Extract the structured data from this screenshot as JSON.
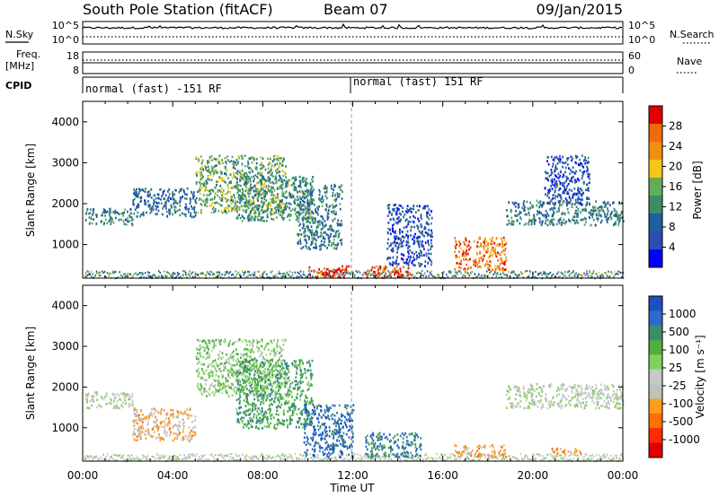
{
  "header": {
    "station": "South Pole Station (fitACF)",
    "beam": "Beam 07",
    "date": "09/Jan/2015"
  },
  "top_panels": {
    "nsky_label": "N.Sky",
    "nsearch_label": "N.Search",
    "noise_ticks_left": [
      "10^5",
      "10^0"
    ],
    "noise_ticks_right": [
      "10^5",
      "10^0"
    ],
    "freq_label_1": "Freq.",
    "freq_label_2": "[MHz]",
    "freq_ticks": [
      "18",
      "8"
    ],
    "nave_label": "Nave",
    "nave_ticks": [
      "60",
      "0"
    ],
    "cpid_label": "CPID",
    "cpid_segments": [
      "normal (fast) -151 RF",
      "normal (fast) 151 RF"
    ]
  },
  "time_axis": {
    "ticks": [
      "00:00",
      "04:00",
      "08:00",
      "12:00",
      "16:00",
      "20:00",
      "00:00"
    ],
    "label": "Time UT"
  },
  "colors": {
    "power_scale": [
      "#0000ff",
      "#2a4eaf",
      "#1f5f9a",
      "#3a8c6a",
      "#64ad57",
      "#f5c518",
      "#f08f12",
      "#ef6a0a",
      "#e00000"
    ],
    "velocity_scale": [
      "#1d4fbf",
      "#2a6cc7",
      "#3a8f6a",
      "#4faf45",
      "#7fd35a",
      "#c8c8c8",
      "#c0c0c0",
      "#ff9d1e",
      "#ff6e00",
      "#ff2a00",
      "#e00000"
    ]
  },
  "chart_data": [
    {
      "type": "heatmap",
      "name": "power",
      "ylabel": "Slant Range [km]",
      "ylim": [
        180,
        4500
      ],
      "y_ticks": [
        "1000",
        "2000",
        "3000",
        "4000"
      ],
      "xlim_hours": [
        0,
        24
      ],
      "colorbar_label": "Power [dB]",
      "colorbar_ticks": [
        "4",
        "8",
        "12",
        "16",
        "20",
        "24",
        "28"
      ],
      "colorbar_range": [
        0,
        30
      ],
      "features": [
        {
          "t0": 0.1,
          "t1": 2.2,
          "r0": 1500,
          "r1": 1900,
          "level": 10
        },
        {
          "t0": 2.2,
          "t1": 5.0,
          "r0": 1700,
          "r1": 2400,
          "level": 8
        },
        {
          "t0": 5.0,
          "t1": 9.0,
          "r0": 1800,
          "r1": 3200,
          "level": 14
        },
        {
          "t0": 6.8,
          "t1": 10.2,
          "r0": 1600,
          "r1": 2700,
          "level": 12
        },
        {
          "t0": 9.5,
          "t1": 11.5,
          "r0": 900,
          "r1": 2500,
          "level": 10
        },
        {
          "t0": 10.0,
          "t1": 11.8,
          "r0": 200,
          "r1": 500,
          "level": 27
        },
        {
          "t0": 12.5,
          "t1": 14.5,
          "r0": 200,
          "r1": 500,
          "level": 26
        },
        {
          "t0": 13.5,
          "t1": 15.5,
          "r0": 500,
          "r1": 2000,
          "level": 6
        },
        {
          "t0": 16.5,
          "t1": 18.8,
          "r0": 400,
          "r1": 1200,
          "level": 24
        },
        {
          "t0": 18.8,
          "t1": 24.0,
          "r0": 1500,
          "r1": 2100,
          "level": 10
        },
        {
          "t0": 20.5,
          "t1": 22.5,
          "r0": 2000,
          "r1": 3200,
          "level": 6
        }
      ]
    },
    {
      "type": "heatmap",
      "name": "velocity",
      "ylabel": "Slant Range [km]",
      "ylim": [
        180,
        4500
      ],
      "y_ticks": [
        "1000",
        "2000",
        "3000",
        "4000"
      ],
      "xlim_hours": [
        0,
        24
      ],
      "colorbar_label": "Velocity [m s⁻¹]",
      "colorbar_ticks": [
        "1000",
        "500",
        "100",
        "25",
        "-25",
        "-100",
        "-500",
        "-1000"
      ],
      "colorbar_range": [
        -1000,
        1000
      ],
      "features": [
        {
          "t0": 0.1,
          "t1": 2.2,
          "r0": 1500,
          "r1": 1900,
          "level": 0
        },
        {
          "t0": 2.2,
          "t1": 5.0,
          "r0": 700,
          "r1": 1500,
          "level": -300
        },
        {
          "t0": 5.0,
          "t1": 9.0,
          "r0": 1800,
          "r1": 3200,
          "level": 200
        },
        {
          "t0": 6.8,
          "t1": 10.2,
          "r0": 1000,
          "r1": 2700,
          "level": 500
        },
        {
          "t0": 9.8,
          "t1": 12.0,
          "r0": 300,
          "r1": 1600,
          "level": 800
        },
        {
          "t0": 12.5,
          "t1": 15.0,
          "r0": 300,
          "r1": 900,
          "level": 700
        },
        {
          "t0": 16.5,
          "t1": 18.8,
          "r0": 300,
          "r1": 600,
          "level": -400
        },
        {
          "t0": 18.8,
          "t1": 24.0,
          "r0": 1500,
          "r1": 2100,
          "level": 0
        },
        {
          "t0": 20.8,
          "t1": 22.3,
          "r0": 380,
          "r1": 520,
          "level": -400
        }
      ]
    }
  ]
}
